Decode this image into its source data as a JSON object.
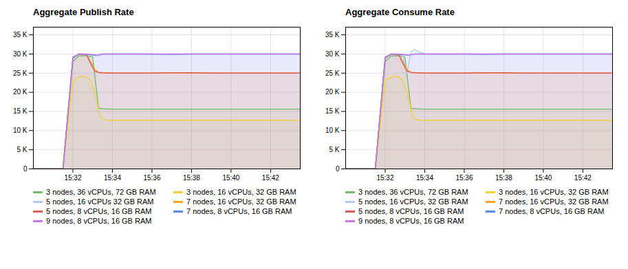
{
  "chart_data": [
    {
      "type": "line",
      "title": "Aggregate Publish Rate",
      "grid": true,
      "legend": "bottom",
      "xlim": [
        0,
        13.5
      ],
      "xticks": [
        {
          "value": 2,
          "label": "15:32"
        },
        {
          "value": 4,
          "label": "15:34"
        },
        {
          "value": 6,
          "label": "15:36"
        },
        {
          "value": 8,
          "label": "15:38"
        },
        {
          "value": 10,
          "label": "15:40"
        },
        {
          "value": 12,
          "label": "15:42"
        }
      ],
      "ylim": [
        0,
        37000
      ],
      "yticks": [
        0,
        {
          "value": 5000,
          "label": "5 K"
        },
        {
          "value": 10000,
          "label": "10 K"
        },
        {
          "value": 15000,
          "label": "15 K"
        },
        {
          "value": 20000,
          "label": "20 K"
        },
        {
          "value": 25000,
          "label": "25 K"
        },
        {
          "value": 30000,
          "label": "30 K"
        },
        {
          "value": 35000,
          "label": "35 K"
        }
      ],
      "series": [
        {
          "name": "3 nodes, 36 vCPUs, 72 GB RAM",
          "color": "#73bf69",
          "x": [
            0,
            1.5,
            2.0,
            2.3,
            2.5,
            2.7,
            3.0,
            3.3,
            3.6,
            4.0,
            5.0,
            6.0,
            7.0,
            8.0,
            9.0,
            10.0,
            11.0,
            12.0,
            13.5
          ],
          "values": [
            0,
            0,
            28000,
            29500,
            29500,
            29500,
            29200,
            15800,
            15700,
            15600,
            15600,
            15600,
            15600,
            15600,
            15600,
            15600,
            15600,
            15600,
            15600
          ]
        },
        {
          "name": "3 nodes, 16 vCPUs, 32 GB RAM",
          "color": "#f4d03f",
          "x": [
            0,
            1.5,
            2.0,
            2.3,
            2.5,
            2.7,
            2.9,
            3.1,
            3.4,
            3.7,
            4.2,
            5.0,
            6.0,
            7.0,
            8.0,
            9.0,
            10.0,
            11.0,
            12.0,
            13.5
          ],
          "values": [
            0,
            0,
            23000,
            24000,
            24200,
            24000,
            23000,
            20000,
            13500,
            12700,
            12700,
            12700,
            12700,
            12700,
            12700,
            12700,
            12700,
            12700,
            12700,
            12700
          ]
        },
        {
          "name": "5 nodes, 16 vCPUs 32 GB RAM",
          "color": "#aecbfa",
          "x": [
            0,
            1.5,
            2.0,
            2.3,
            2.5,
            2.7,
            2.9,
            3.1,
            3.3,
            3.5,
            4.0,
            5.0,
            6.0,
            7.0,
            8.0,
            9.0,
            10.0,
            11.0,
            12.0,
            13.5
          ],
          "values": [
            0,
            0,
            29000,
            30000,
            30000,
            29800,
            29700,
            29600,
            29500,
            29900,
            30000,
            30000,
            29900,
            30000,
            30000,
            30000,
            30000,
            30000,
            30000,
            30000
          ]
        },
        {
          "name": "7 nodes, 16 vCPUs, 32 GB RAM",
          "color": "#f4a623",
          "x": [
            0,
            1.5,
            2.0,
            2.3,
            2.5,
            2.7,
            2.9,
            3.1,
            3.3,
            3.5,
            4.0,
            5.0,
            6.0,
            7.0,
            8.0,
            9.0,
            10.0,
            11.0,
            12.0,
            13.5
          ],
          "values": [
            0,
            0,
            29000,
            30000,
            29900,
            29700,
            28000,
            26000,
            25200,
            25100,
            25000,
            25000,
            25000,
            25000,
            25000,
            25000,
            25000,
            25000,
            25000,
            25000
          ]
        },
        {
          "name": "5 nodes, 8 vCPUs, 16 GB RAM",
          "color": "#e05c5c",
          "x": [
            0,
            1.5,
            2.0,
            2.3,
            2.5,
            2.7,
            2.9,
            3.1,
            3.3,
            3.5,
            4.0,
            5.0,
            6.0,
            7.0,
            8.0,
            9.0,
            10.0,
            11.0,
            12.0,
            13.5
          ],
          "values": [
            0,
            0,
            29000,
            30000,
            29900,
            29700,
            27500,
            25500,
            25200,
            25100,
            25000,
            25000,
            25000,
            25100,
            25100,
            25000,
            25000,
            25000,
            25000,
            25000
          ]
        },
        {
          "name": "7 nodes, 8 vCPUs, 16 GB RAM",
          "color": "#5b8dee",
          "x": [
            0,
            1.5,
            2.0,
            2.3,
            2.5,
            2.7,
            2.9,
            3.1,
            3.3,
            3.5,
            4.0,
            5.0,
            6.0,
            7.0,
            8.0,
            9.0,
            10.0,
            11.0,
            12.0,
            13.5
          ],
          "values": [
            0,
            0,
            29000,
            30000,
            30000,
            29900,
            29800,
            29700,
            29800,
            30000,
            30000,
            30000,
            30000,
            29900,
            30000,
            30000,
            30000,
            30000,
            30000,
            30000
          ]
        },
        {
          "name": "9 nodes, 8 vCPUs, 16 GB RAM",
          "color": "#cc77e0",
          "x": [
            0,
            1.5,
            2.0,
            2.3,
            2.5,
            2.7,
            2.9,
            3.1,
            3.3,
            3.5,
            4.0,
            5.0,
            6.0,
            7.0,
            8.0,
            9.0,
            10.0,
            11.0,
            12.0,
            13.5
          ],
          "values": [
            0,
            0,
            29200,
            30000,
            30000,
            30000,
            29900,
            29800,
            29800,
            30000,
            30000,
            30000,
            30000,
            30000,
            30000,
            30000,
            30000,
            30000,
            30000,
            30000
          ]
        }
      ]
    },
    {
      "type": "line",
      "title": "Aggregate Consume Rate",
      "grid": true,
      "legend": "bottom",
      "xlim": [
        0,
        13.5
      ],
      "xticks": [
        {
          "value": 2,
          "label": "15:32"
        },
        {
          "value": 4,
          "label": "15:34"
        },
        {
          "value": 6,
          "label": "15:36"
        },
        {
          "value": 8,
          "label": "15:38"
        },
        {
          "value": 10,
          "label": "15:40"
        },
        {
          "value": 12,
          "label": "15:42"
        }
      ],
      "ylim": [
        0,
        37000
      ],
      "yticks": [
        0,
        {
          "value": 5000,
          "label": "5 K"
        },
        {
          "value": 10000,
          "label": "10 K"
        },
        {
          "value": 15000,
          "label": "15 K"
        },
        {
          "value": 20000,
          "label": "20 K"
        },
        {
          "value": 25000,
          "label": "25 K"
        },
        {
          "value": 30000,
          "label": "30 K"
        },
        {
          "value": 35000,
          "label": "35 K"
        }
      ],
      "series": [
        {
          "name": "3 nodes, 36 vCPUs, 72 GB RAM",
          "color": "#73bf69",
          "x": [
            0,
            1.5,
            2.0,
            2.3,
            2.5,
            2.7,
            3.0,
            3.3,
            3.6,
            4.0,
            5.0,
            6.0,
            7.0,
            8.0,
            9.0,
            10.0,
            11.0,
            12.0,
            13.5
          ],
          "values": [
            0,
            0,
            28000,
            29500,
            29500,
            29500,
            29200,
            15800,
            15700,
            15600,
            15600,
            15600,
            15600,
            15600,
            15600,
            15600,
            15600,
            15600,
            15600
          ]
        },
        {
          "name": "3 nodes, 16 vCPUs, 32 GB RAM",
          "color": "#f4d03f",
          "x": [
            0,
            1.5,
            2.0,
            2.3,
            2.5,
            2.7,
            2.9,
            3.1,
            3.4,
            3.7,
            4.2,
            5.0,
            6.0,
            7.0,
            8.0,
            9.0,
            10.0,
            11.0,
            12.0,
            13.5
          ],
          "values": [
            0,
            0,
            23000,
            24000,
            24200,
            24000,
            23000,
            20000,
            13500,
            12700,
            12700,
            12700,
            12700,
            12700,
            12700,
            12700,
            12700,
            12700,
            12700,
            12700
          ]
        },
        {
          "name": "5 nodes, 16 vCPUs, 32 GB RAM",
          "color": "#aecbfa",
          "x": [
            0,
            1.5,
            2.0,
            2.3,
            2.5,
            2.7,
            2.9,
            3.1,
            3.3,
            3.5,
            3.7,
            4.0,
            5.0,
            6.0,
            7.0,
            8.0,
            9.0,
            10.0,
            11.0,
            12.0,
            13.5
          ],
          "values": [
            0,
            0,
            29000,
            30000,
            30000,
            29800,
            29500,
            25000,
            30500,
            31200,
            30500,
            30000,
            29900,
            30000,
            30000,
            30000,
            30000,
            30000,
            30000,
            30000,
            30000
          ]
        },
        {
          "name": "7 nodes, 16 vCPUs, 32 GB RAM",
          "color": "#f4a623",
          "x": [
            0,
            1.5,
            2.0,
            2.3,
            2.5,
            2.7,
            2.9,
            3.1,
            3.3,
            3.5,
            4.0,
            5.0,
            6.0,
            7.0,
            8.0,
            9.0,
            10.0,
            11.0,
            12.0,
            13.5
          ],
          "values": [
            0,
            0,
            29000,
            30000,
            29900,
            29700,
            28000,
            26000,
            25200,
            25100,
            25000,
            25000,
            25000,
            25000,
            25000,
            25000,
            25000,
            25000,
            25000,
            25000
          ]
        },
        {
          "name": "5 nodes, 8 vCPUs, 16 GB RAM",
          "color": "#e05c5c",
          "x": [
            0,
            1.5,
            2.0,
            2.3,
            2.5,
            2.7,
            2.9,
            3.1,
            3.3,
            3.5,
            4.0,
            5.0,
            6.0,
            7.0,
            8.0,
            9.0,
            10.0,
            11.0,
            12.0,
            13.5
          ],
          "values": [
            0,
            0,
            29000,
            30000,
            29900,
            29700,
            27500,
            25500,
            25200,
            25100,
            25000,
            25000,
            25000,
            25100,
            25100,
            25000,
            25000,
            25000,
            25000,
            25000
          ]
        },
        {
          "name": "7 nodes, 8 vCPUs, 16 GB RAM",
          "color": "#5b8dee",
          "x": [
            0,
            1.5,
            2.0,
            2.3,
            2.5,
            2.7,
            2.9,
            3.1,
            3.3,
            3.5,
            4.0,
            5.0,
            6.0,
            7.0,
            8.0,
            9.0,
            10.0,
            11.0,
            12.0,
            13.5
          ],
          "values": [
            0,
            0,
            29000,
            30000,
            30000,
            29900,
            29800,
            29700,
            29800,
            30000,
            30000,
            30000,
            30000,
            29900,
            30000,
            30000,
            30000,
            30000,
            30000,
            30000
          ]
        },
        {
          "name": "9 nodes, 8 vCPUs, 16 GB RAM",
          "color": "#cc77e0",
          "x": [
            0,
            1.5,
            2.0,
            2.3,
            2.5,
            2.7,
            2.9,
            3.1,
            3.3,
            3.5,
            4.0,
            5.0,
            6.0,
            7.0,
            8.0,
            9.0,
            10.0,
            11.0,
            12.0,
            13.5
          ],
          "values": [
            0,
            0,
            29200,
            30000,
            30000,
            30000,
            29900,
            29800,
            29800,
            30000,
            30000,
            30000,
            30000,
            30000,
            30000,
            30000,
            30000,
            30000,
            30000,
            30000
          ]
        }
      ]
    }
  ]
}
